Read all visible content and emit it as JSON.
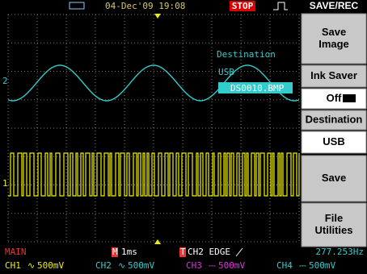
{
  "top_bar": {
    "datetime": "04-Dec'09 19:08",
    "status": "STOP"
  },
  "menu": {
    "title": "SAVE/REC",
    "items": [
      {
        "lines": [
          "Save",
          "Image"
        ]
      },
      {
        "lines": [
          "Ink Saver"
        ]
      },
      {
        "lines": [
          "Off"
        ]
      },
      {
        "lines": [
          "Destination"
        ]
      },
      {
        "lines": [
          "USB"
        ]
      },
      {
        "lines": [
          "Save"
        ]
      },
      {
        "lines": [
          "File",
          "Utilities"
        ]
      }
    ]
  },
  "overlay": {
    "label": "Destination",
    "device": "USB",
    "filename": "DS0010.BMP"
  },
  "channel_markers": [
    "2",
    "1"
  ],
  "status": {
    "mode": "MAIN",
    "timebase_marker": "M",
    "timebase": "1ms",
    "trigger_marker": "T",
    "trigger": "CH2 EDGE",
    "frequency": "277.253Hz",
    "channels": [
      {
        "name": "CH1",
        "coupling": "∿",
        "scale": "500mV"
      },
      {
        "name": "CH2",
        "coupling": "∿",
        "scale": "500mV"
      },
      {
        "name": "CH3",
        "coupling": "⎓",
        "scale": "500mV"
      },
      {
        "name": "CH4",
        "coupling": "⎓",
        "scale": "500mV"
      }
    ]
  }
}
